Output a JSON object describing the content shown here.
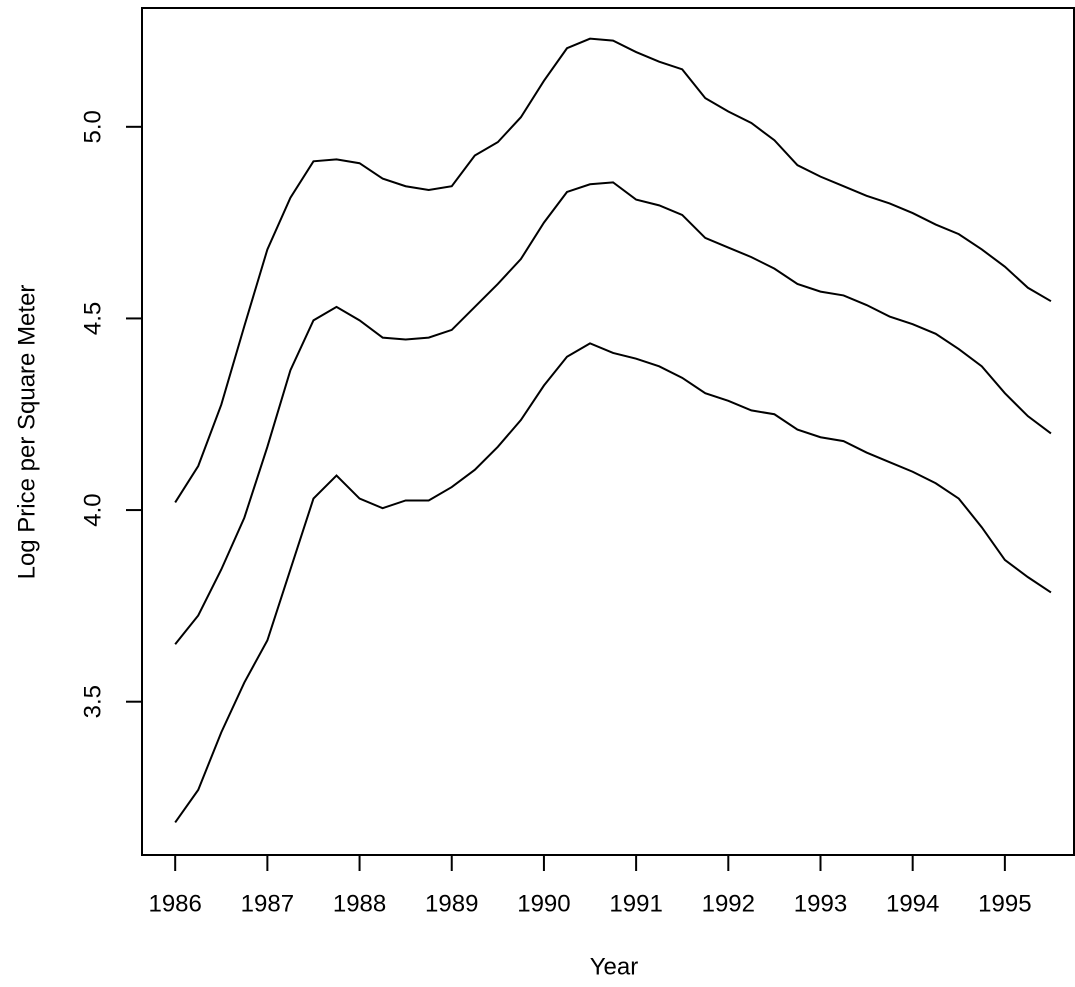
{
  "chart_data": {
    "type": "line",
    "x_label": "Year",
    "y_label": "Log Price per Square Meter",
    "x": [
      1986,
      1986.25,
      1986.5,
      1986.75,
      1987,
      1987.25,
      1987.5,
      1987.75,
      1988,
      1988.25,
      1988.5,
      1988.75,
      1989,
      1989.25,
      1989.5,
      1989.75,
      1990,
      1990.25,
      1990.5,
      1990.75,
      1991,
      1991.25,
      1991.5,
      1991.75,
      1992,
      1992.25,
      1992.5,
      1992.75,
      1993,
      1993.25,
      1993.5,
      1993.75,
      1994,
      1994.25,
      1994.5,
      1994.75,
      1995,
      1995.25,
      1995.5
    ],
    "series": [
      {
        "color": "#000000",
        "values": [
          4.02,
          4.115,
          4.275,
          4.48,
          4.68,
          4.815,
          4.91,
          4.915,
          4.905,
          4.865,
          4.845,
          4.835,
          4.845,
          4.925,
          4.96,
          5.025,
          5.12,
          5.205,
          5.23,
          5.225,
          5.195,
          5.17,
          5.15,
          5.075,
          5.04,
          5.01,
          4.965,
          4.9,
          4.87,
          4.845,
          4.82,
          4.8,
          4.775,
          4.745,
          4.72,
          4.68,
          4.635,
          4.58,
          4.545
        ]
      },
      {
        "color": "#000000",
        "values": [
          3.65,
          3.725,
          3.845,
          3.98,
          4.165,
          4.365,
          4.495,
          4.53,
          4.495,
          4.45,
          4.445,
          4.45,
          4.47,
          4.53,
          4.59,
          4.655,
          4.75,
          4.83,
          4.85,
          4.855,
          4.81,
          4.795,
          4.77,
          4.71,
          4.685,
          4.66,
          4.63,
          4.59,
          4.57,
          4.56,
          4.535,
          4.505,
          4.485,
          4.46,
          4.42,
          4.375,
          4.305,
          4.245,
          4.2
        ]
      },
      {
        "color": "#000000",
        "values": [
          3.185,
          3.27,
          3.42,
          3.55,
          3.66,
          3.845,
          4.03,
          4.09,
          4.03,
          4.005,
          4.025,
          4.025,
          4.06,
          4.105,
          4.165,
          4.235,
          4.325,
          4.4,
          4.435,
          4.41,
          4.395,
          4.375,
          4.345,
          4.305,
          4.285,
          4.26,
          4.25,
          4.21,
          4.19,
          4.18,
          4.15,
          4.125,
          4.1,
          4.07,
          4.03,
          3.955,
          3.87,
          3.825,
          3.785
        ]
      }
    ],
    "xlim": [
      1985.64,
      1995.75
    ],
    "xticks": [
      1986,
      1987,
      1988,
      1989,
      1990,
      1991,
      1992,
      1993,
      1994,
      1995
    ],
    "ylim": [
      3.1,
      5.31
    ],
    "yticks": [
      3.5,
      {
        "value": 4,
        "label": "4.0"
      },
      4.5,
      {
        "value": 5,
        "label": "5.0"
      }
    ],
    "grid": false
  }
}
